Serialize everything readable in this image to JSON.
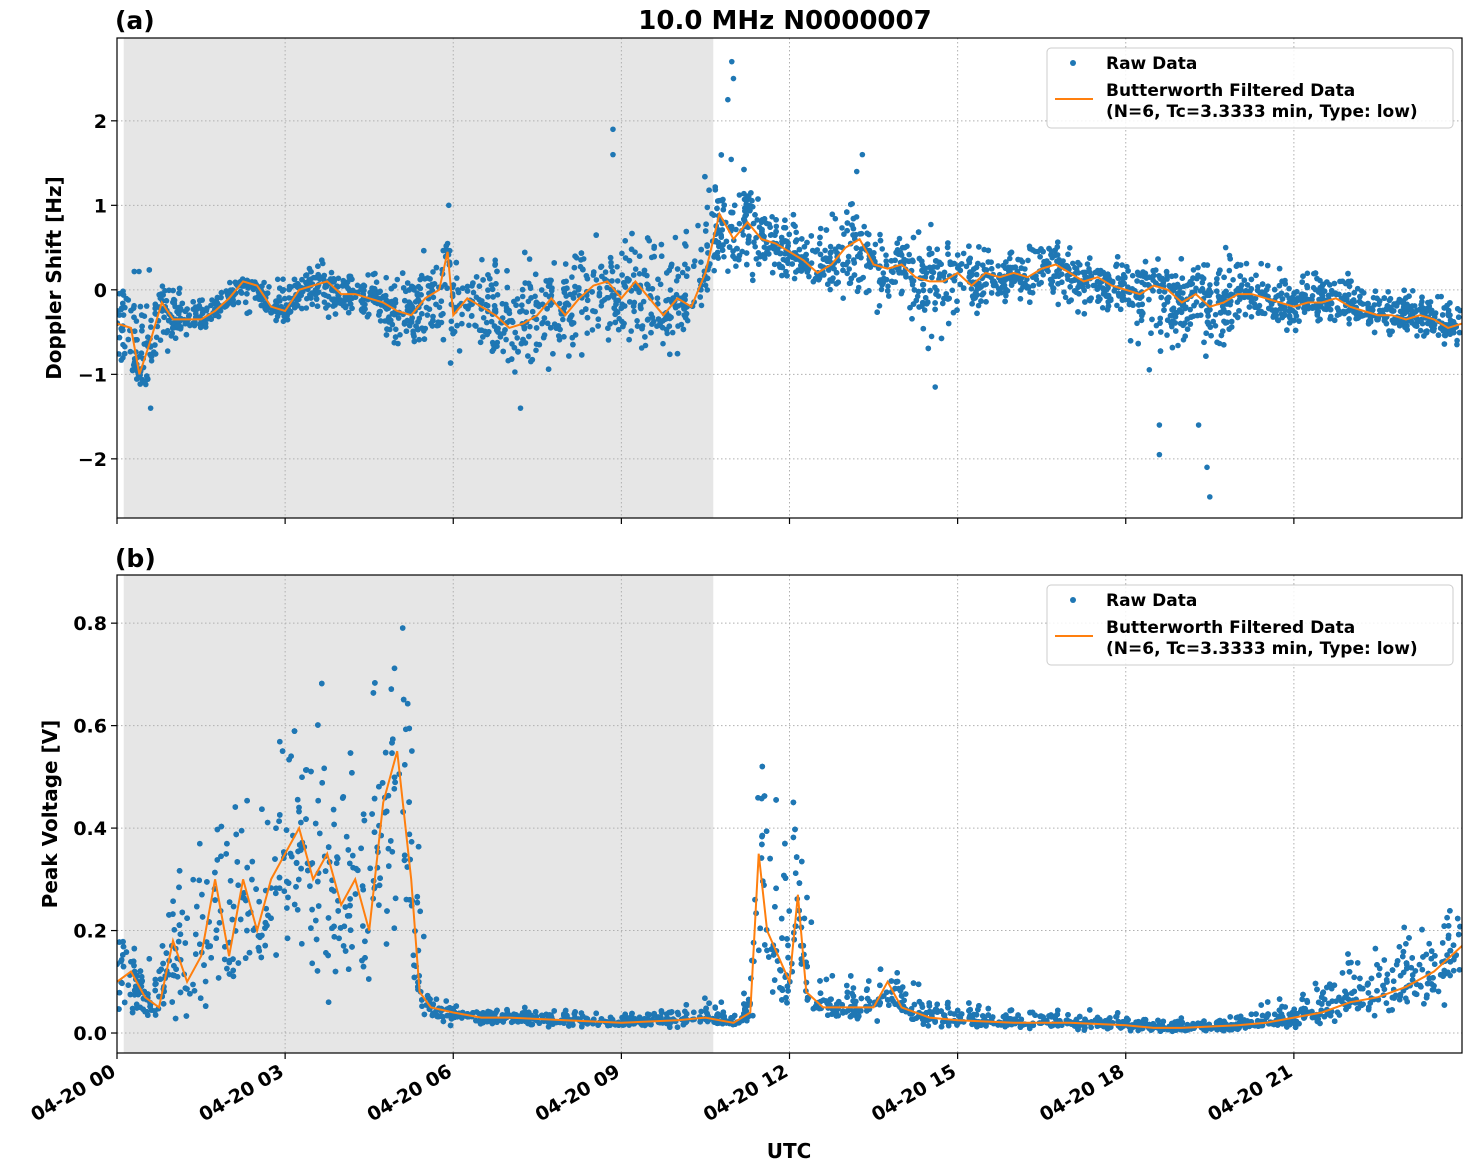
{
  "chart_data": [
    {
      "type": "scatter+line",
      "panel_label": "(a)",
      "title": "10.0 MHz N0000007",
      "xlabel": "",
      "ylabel": "Doppler Shift [Hz]",
      "xlim_hours": [
        0,
        24
      ],
      "ylim": [
        -2.7,
        2.98
      ],
      "yticks": [
        -2,
        -1,
        0,
        1,
        2
      ],
      "ytick_labels": [
        "−2",
        "−1",
        "0",
        "1",
        "2"
      ],
      "grid": true,
      "legend_placement": "top-right",
      "shaded_interval_hours": [
        0.12,
        10.64
      ],
      "shade_color": "#e6e6e6",
      "legend": [
        "Raw Data",
        "Butterworth Filtered Data",
        "(N=6, Tc=3.3333 min, Type: low)"
      ],
      "series": [
        {
          "name": "Raw Data",
          "kind": "scatter",
          "color": "#1f77b4",
          "envelope_hours_lo_hi": [
            [
              0,
              -0.9,
              0.3
            ],
            [
              0.5,
              -1.3,
              0.3
            ],
            [
              1,
              -0.6,
              0.1
            ],
            [
              1.5,
              -0.5,
              0
            ],
            [
              2,
              -0.3,
              0.2
            ],
            [
              2.5,
              -0.4,
              0.1
            ],
            [
              3,
              -0.5,
              0.2
            ],
            [
              3.5,
              -0.3,
              0.4
            ],
            [
              4,
              -0.4,
              0.3
            ],
            [
              4.5,
              -0.4,
              0.2
            ],
            [
              5,
              -0.8,
              0.2
            ],
            [
              5.5,
              -0.8,
              0.5
            ],
            [
              6,
              -1.0,
              0.6
            ],
            [
              6.5,
              -0.9,
              0.5
            ],
            [
              7,
              -1.3,
              0.4
            ],
            [
              7.5,
              -1.1,
              0.5
            ],
            [
              8,
              -1.0,
              0.5
            ],
            [
              8.5,
              -0.8,
              0.7
            ],
            [
              9,
              -0.9,
              0.7
            ],
            [
              9.5,
              -0.9,
              0.8
            ],
            [
              10,
              -0.8,
              0.7
            ],
            [
              10.5,
              -0.2,
              1.4
            ],
            [
              11,
              0.0,
              1.9
            ],
            [
              11.5,
              0.1,
              1.1
            ],
            [
              12,
              0.0,
              0.9
            ],
            [
              12.5,
              -0.1,
              1.0
            ],
            [
              13,
              -0.2,
              1.2
            ],
            [
              13.5,
              -0.3,
              0.8
            ],
            [
              14,
              -0.4,
              0.8
            ],
            [
              14.5,
              -0.8,
              0.8
            ],
            [
              15,
              -0.5,
              0.7
            ],
            [
              15.5,
              -0.3,
              0.6
            ],
            [
              16,
              -0.2,
              0.6
            ],
            [
              16.5,
              -0.2,
              0.8
            ],
            [
              17,
              -0.3,
              0.6
            ],
            [
              17.5,
              -0.3,
              0.4
            ],
            [
              18,
              -0.5,
              0.5
            ],
            [
              18.5,
              -1.2,
              0.5
            ],
            [
              19,
              -0.9,
              0.4
            ],
            [
              19.5,
              -1.2,
              0.6
            ],
            [
              20,
              -0.6,
              0.5
            ],
            [
              20.5,
              -0.5,
              0.3
            ],
            [
              21,
              -0.5,
              0.3
            ],
            [
              21.5,
              -0.4,
              0.3
            ],
            [
              22,
              -0.5,
              0.2
            ],
            [
              22.5,
              -0.6,
              0.1
            ],
            [
              23,
              -0.6,
              0.1
            ],
            [
              23.5,
              -0.7,
              0.0
            ],
            [
              24,
              -0.7,
              0.0
            ]
          ],
          "outliers_hours_value": [
            [
              10.97,
              2.7
            ],
            [
              11.0,
              2.5
            ],
            [
              10.9,
              2.25
            ],
            [
              8.85,
              1.9
            ],
            [
              8.85,
              1.6
            ],
            [
              5.92,
              1.0
            ],
            [
              13.3,
              1.6
            ],
            [
              13.2,
              1.4
            ],
            [
              18.6,
              -1.95
            ],
            [
              18.6,
              -1.6
            ],
            [
              19.5,
              -2.45
            ],
            [
              19.45,
              -2.1
            ],
            [
              19.3,
              -1.6
            ],
            [
              0.6,
              -1.4
            ],
            [
              14.6,
              -1.15
            ],
            [
              7.2,
              -1.4
            ]
          ]
        },
        {
          "name": "Butterworth Filtered Data",
          "kind": "line",
          "color": "#ff7f0e",
          "x_hours": [
            0,
            0.25,
            0.4,
            0.6,
            0.8,
            1.0,
            1.25,
            1.5,
            1.75,
            2.0,
            2.25,
            2.5,
            2.75,
            3.0,
            3.25,
            3.5,
            3.75,
            4.0,
            4.25,
            4.5,
            4.75,
            5.0,
            5.25,
            5.5,
            5.75,
            5.9,
            6.0,
            6.25,
            6.5,
            6.75,
            7.0,
            7.25,
            7.5,
            7.75,
            8.0,
            8.25,
            8.5,
            8.75,
            9.0,
            9.25,
            9.5,
            9.75,
            10.0,
            10.25,
            10.5,
            10.75,
            11.0,
            11.25,
            11.5,
            11.75,
            12.0,
            12.25,
            12.5,
            12.75,
            13.0,
            13.25,
            13.5,
            13.75,
            14.0,
            14.25,
            14.5,
            14.75,
            15.0,
            15.25,
            15.5,
            15.75,
            16.0,
            16.25,
            16.5,
            16.75,
            17.0,
            17.25,
            17.5,
            17.75,
            18.0,
            18.25,
            18.5,
            18.75,
            19.0,
            19.25,
            19.5,
            19.75,
            20.0,
            20.25,
            20.5,
            20.75,
            21.0,
            21.25,
            21.5,
            21.75,
            22.0,
            22.25,
            22.5,
            22.75,
            23.0,
            23.25,
            23.5,
            23.75,
            24.0
          ],
          "values": [
            -0.4,
            -0.45,
            -1.0,
            -0.6,
            -0.15,
            -0.35,
            -0.35,
            -0.35,
            -0.25,
            -0.1,
            0.1,
            0.05,
            -0.2,
            -0.25,
            0.0,
            0.05,
            0.1,
            -0.05,
            -0.05,
            -0.1,
            -0.15,
            -0.25,
            -0.3,
            -0.1,
            0.0,
            0.45,
            -0.3,
            -0.1,
            -0.2,
            -0.3,
            -0.45,
            -0.4,
            -0.3,
            -0.1,
            -0.3,
            -0.1,
            0.05,
            0.1,
            -0.1,
            0.1,
            -0.1,
            -0.3,
            -0.1,
            -0.2,
            0.2,
            0.9,
            0.6,
            0.8,
            0.6,
            0.55,
            0.45,
            0.35,
            0.2,
            0.3,
            0.5,
            0.6,
            0.3,
            0.25,
            0.3,
            0.15,
            0.1,
            0.1,
            0.2,
            0.05,
            0.2,
            0.15,
            0.2,
            0.15,
            0.25,
            0.3,
            0.2,
            0.1,
            0.15,
            0.05,
            0.0,
            -0.05,
            0.05,
            0.0,
            -0.15,
            -0.05,
            -0.2,
            -0.15,
            -0.05,
            -0.05,
            -0.1,
            -0.15,
            -0.2,
            -0.15,
            -0.15,
            -0.1,
            -0.2,
            -0.25,
            -0.3,
            -0.3,
            -0.35,
            -0.3,
            -0.35,
            -0.45,
            -0.4
          ]
        }
      ]
    },
    {
      "type": "scatter+line",
      "panel_label": "(b)",
      "xlabel": "UTC",
      "ylabel": "Peak Voltage [V]",
      "xlim_hours": [
        0,
        24
      ],
      "ylim": [
        -0.039,
        0.894
      ],
      "yticks": [
        0.0,
        0.2,
        0.4,
        0.6,
        0.8
      ],
      "ytick_labels": [
        "0.0",
        "0.2",
        "0.4",
        "0.6",
        "0.8"
      ],
      "xtick_labels": [
        "04-20 00",
        "04-20 03",
        "04-20 06",
        "04-20 09",
        "04-20 12",
        "04-20 15",
        "04-20 18",
        "04-20 21"
      ],
      "grid": true,
      "legend_placement": "top-right",
      "shaded_interval_hours": [
        0.12,
        10.64
      ],
      "legend": [
        "Raw Data",
        "Butterworth Filtered Data",
        "(N=6, Tc=3.3333 min, Type: low)"
      ],
      "series": [
        {
          "name": "Raw Data",
          "kind": "scatter",
          "color": "#1f77b4",
          "envelope_hours_lo_hi": [
            [
              0,
              0.02,
              0.26
            ],
            [
              0.5,
              0.02,
              0.12
            ],
            [
              1,
              0.02,
              0.3
            ],
            [
              1.5,
              0.02,
              0.5
            ],
            [
              2,
              0.02,
              0.65
            ],
            [
              2.5,
              0.03,
              0.6
            ],
            [
              3,
              0.03,
              0.75
            ],
            [
              3.5,
              0.03,
              0.7
            ],
            [
              4,
              0.03,
              0.7
            ],
            [
              4.5,
              0.05,
              0.65
            ],
            [
              5,
              0.1,
              0.85
            ],
            [
              5.3,
              0.05,
              0.8
            ],
            [
              5.5,
              0.02,
              0.1
            ],
            [
              6,
              0.01,
              0.06
            ],
            [
              6.5,
              0.01,
              0.05
            ],
            [
              7,
              0.01,
              0.05
            ],
            [
              7.5,
              0.01,
              0.05
            ],
            [
              8,
              0.01,
              0.05
            ],
            [
              8.5,
              0.01,
              0.04
            ],
            [
              9,
              0.01,
              0.04
            ],
            [
              9.5,
              0.01,
              0.04
            ],
            [
              10,
              0.01,
              0.06
            ],
            [
              10.5,
              0.01,
              0.07
            ],
            [
              11,
              0.01,
              0.06
            ],
            [
              11.3,
              0.02,
              0.1
            ],
            [
              11.5,
              0.05,
              0.7
            ],
            [
              12,
              0.03,
              0.4
            ],
            [
              12.2,
              0.03,
              0.58
            ],
            [
              12.5,
              0.02,
              0.15
            ],
            [
              13,
              0.02,
              0.12
            ],
            [
              13.5,
              0.02,
              0.12
            ],
            [
              13.75,
              0.02,
              0.2
            ],
            [
              14,
              0.01,
              0.15
            ],
            [
              14.5,
              0.01,
              0.08
            ],
            [
              15,
              0.01,
              0.07
            ],
            [
              15.5,
              0.01,
              0.06
            ],
            [
              16,
              0.01,
              0.06
            ],
            [
              16.5,
              0.005,
              0.05
            ],
            [
              17,
              0.005,
              0.05
            ],
            [
              17.5,
              0.005,
              0.05
            ],
            [
              18,
              0.005,
              0.04
            ],
            [
              18.5,
              0.0,
              0.03
            ],
            [
              19,
              0.0,
              0.03
            ],
            [
              19.5,
              0.0,
              0.03
            ],
            [
              20,
              0.0,
              0.04
            ],
            [
              20.5,
              0.01,
              0.06
            ],
            [
              21,
              0.01,
              0.08
            ],
            [
              21.5,
              0.01,
              0.12
            ],
            [
              22,
              0.02,
              0.16
            ],
            [
              22.5,
              0.02,
              0.2
            ],
            [
              23,
              0.03,
              0.24
            ],
            [
              23.5,
              0.03,
              0.27
            ],
            [
              24,
              0.04,
              0.3
            ]
          ],
          "outliers_hours_value": []
        },
        {
          "name": "Butterworth Filtered Data",
          "kind": "line",
          "color": "#ff7f0e",
          "x_hours": [
            0,
            0.25,
            0.5,
            0.75,
            1.0,
            1.25,
            1.5,
            1.75,
            2.0,
            2.25,
            2.5,
            2.75,
            3.0,
            3.25,
            3.5,
            3.75,
            4.0,
            4.25,
            4.5,
            4.75,
            5.0,
            5.25,
            5.4,
            5.6,
            6.0,
            6.5,
            7,
            8,
            9,
            10,
            10.5,
            11.0,
            11.3,
            11.45,
            11.6,
            11.8,
            12.0,
            12.15,
            12.3,
            12.6,
            13,
            13.5,
            13.75,
            14.0,
            14.5,
            15,
            16,
            17,
            18,
            18.5,
            19,
            20,
            20.5,
            21,
            21.5,
            22,
            22.5,
            23,
            23.5,
            24
          ],
          "values": [
            0.1,
            0.12,
            0.07,
            0.05,
            0.18,
            0.1,
            0.15,
            0.3,
            0.15,
            0.3,
            0.2,
            0.3,
            0.35,
            0.4,
            0.3,
            0.35,
            0.25,
            0.3,
            0.2,
            0.45,
            0.55,
            0.3,
            0.08,
            0.05,
            0.04,
            0.03,
            0.03,
            0.025,
            0.02,
            0.025,
            0.03,
            0.02,
            0.04,
            0.35,
            0.2,
            0.15,
            0.1,
            0.27,
            0.08,
            0.05,
            0.05,
            0.05,
            0.1,
            0.05,
            0.03,
            0.025,
            0.02,
            0.02,
            0.015,
            0.01,
            0.01,
            0.015,
            0.02,
            0.03,
            0.04,
            0.06,
            0.07,
            0.09,
            0.12,
            0.17
          ]
        }
      ]
    }
  ]
}
